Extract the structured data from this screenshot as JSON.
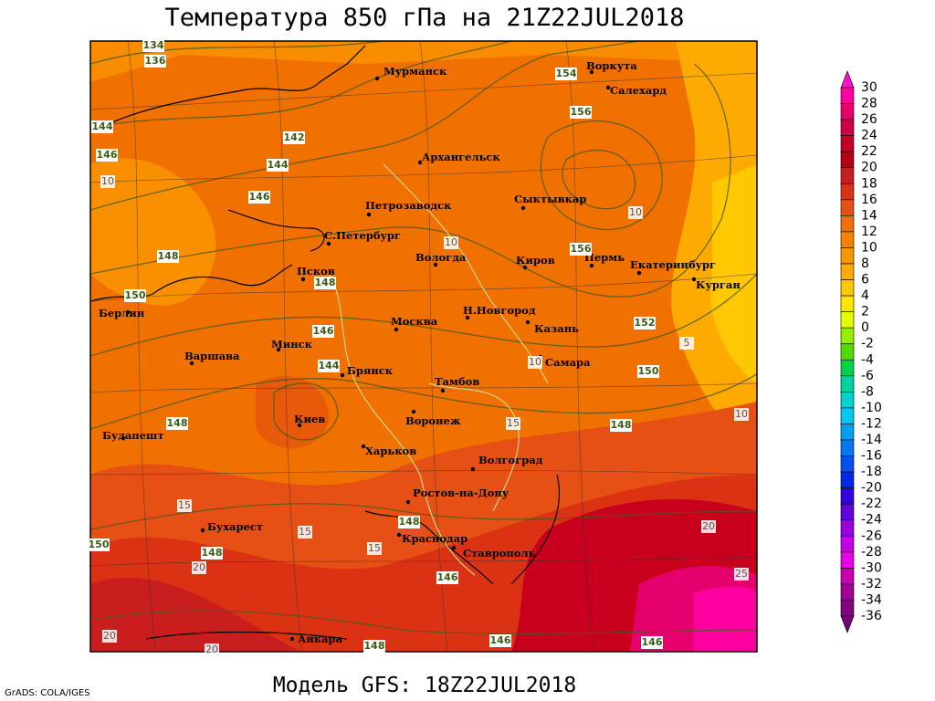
{
  "header": {
    "title": "Температура 850 гПа на 21Z22JUL2018"
  },
  "footer": {
    "model": "Модель GFS: 18Z22JUL2018",
    "credit": "GrADS: COLA/IGES"
  },
  "colorbar": {
    "levels": [
      30,
      28,
      26,
      24,
      22,
      20,
      18,
      16,
      14,
      12,
      10,
      8,
      6,
      4,
      2,
      0,
      -2,
      -4,
      -6,
      -8,
      -10,
      -12,
      -14,
      -16,
      -18,
      -20,
      -22,
      -24,
      -26,
      -28,
      -30,
      -32,
      -34,
      -36
    ],
    "colors": [
      "#ff10d0",
      "#ff00a0",
      "#e6006e",
      "#d20046",
      "#be0028",
      "#b40014",
      "#c81e1e",
      "#dc3214",
      "#e65014",
      "#f06e0a",
      "#f58200",
      "#fa9600",
      "#ffaa00",
      "#ffc800",
      "#ffe600",
      "#e6ff00",
      "#96f000",
      "#50dc00",
      "#00d250",
      "#00d2a0",
      "#00d2d2",
      "#00c8f0",
      "#00a0f0",
      "#0078f0",
      "#0050f0",
      "#0028e6",
      "#3200dc",
      "#6400dc",
      "#9600dc",
      "#c800e6",
      "#e600e6",
      "#c800b4",
      "#a00096",
      "#820082",
      "#780078"
    ]
  },
  "cities": [
    "Мурманск",
    "Воркута",
    "Салехард",
    "Архангельск",
    "Сыктывкар",
    "Петрозаводск",
    "С.Петербург",
    "Вологда",
    "Киров",
    "Пермь",
    "Екатеринбург",
    "Курган",
    "Псков",
    "Берлин",
    "Н.Новгород",
    "Казань",
    "Москва",
    "Минск",
    "Варшава",
    "Самара",
    "Брянск",
    "Тамбов",
    "Киев",
    "Воронеж",
    "Будапешт",
    "Харьков",
    "Волгоград",
    "Ростов-на-Дону",
    "Бухарест",
    "Краснодар",
    "Ставрополь",
    "Анкара"
  ],
  "height_labels": [
    134,
    136,
    144,
    142,
    144,
    146,
    146,
    148,
    150,
    148,
    146,
    144,
    148,
    148,
    148,
    146,
    148,
    146,
    146,
    154,
    156,
    156,
    152,
    150,
    148,
    150
  ],
  "temperature_labels": [
    10,
    10,
    10,
    10,
    5,
    10,
    15,
    15,
    15,
    15,
    20,
    20,
    25,
    20,
    20
  ]
}
